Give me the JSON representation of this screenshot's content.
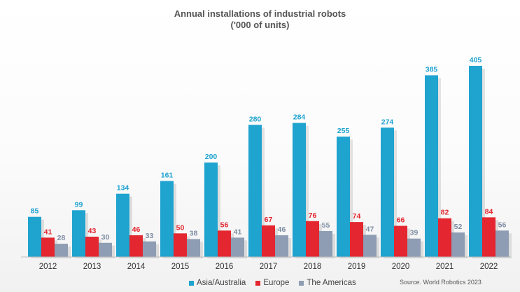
{
  "title_line1": "Annual installations of industrial robots",
  "title_line2": "('000 of units)",
  "source": "Source. World Robotics 2023",
  "colors": {
    "Asia/Australia": "#1fa3cf",
    "Europe": "#e3262f",
    "The Americas": "#8e9db3",
    "label_Americas": "#7f8da3"
  },
  "chart_data": {
    "type": "bar",
    "title": "Annual installations of industrial robots ('000 of units)",
    "categories": [
      "2012",
      "2013",
      "2014",
      "2015",
      "2016",
      "2017",
      "2018",
      "2019",
      "2020",
      "2021",
      "2022"
    ],
    "series": [
      {
        "name": "Asia/Australia",
        "values": [
          85,
          99,
          134,
          161,
          200,
          280,
          284,
          255,
          274,
          385,
          405
        ]
      },
      {
        "name": "Europe",
        "values": [
          41,
          43,
          46,
          50,
          56,
          67,
          76,
          74,
          66,
          82,
          84
        ]
      },
      {
        "name": "The Americas",
        "values": [
          28,
          30,
          33,
          38,
          41,
          46,
          55,
          47,
          39,
          52,
          56
        ]
      }
    ],
    "ylim": [
      0,
      420
    ],
    "grid": false,
    "legend": "bottom",
    "data_labels": true
  }
}
